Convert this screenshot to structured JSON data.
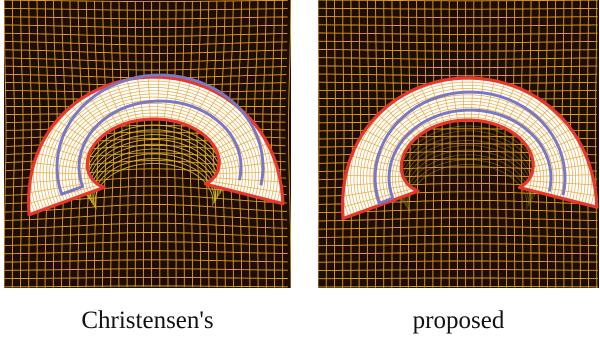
{
  "figure": {
    "panels": [
      {
        "caption": "Christensen's"
      },
      {
        "caption": "proposed"
      }
    ]
  },
  "colors": {
    "background": "#1e0d05",
    "grid": "#e39b1f",
    "grid_warped": "#d8c030",
    "region_fill": "#ffffff",
    "outer_contour": "#e8382a",
    "inner_contour": "#7a78c4"
  }
}
